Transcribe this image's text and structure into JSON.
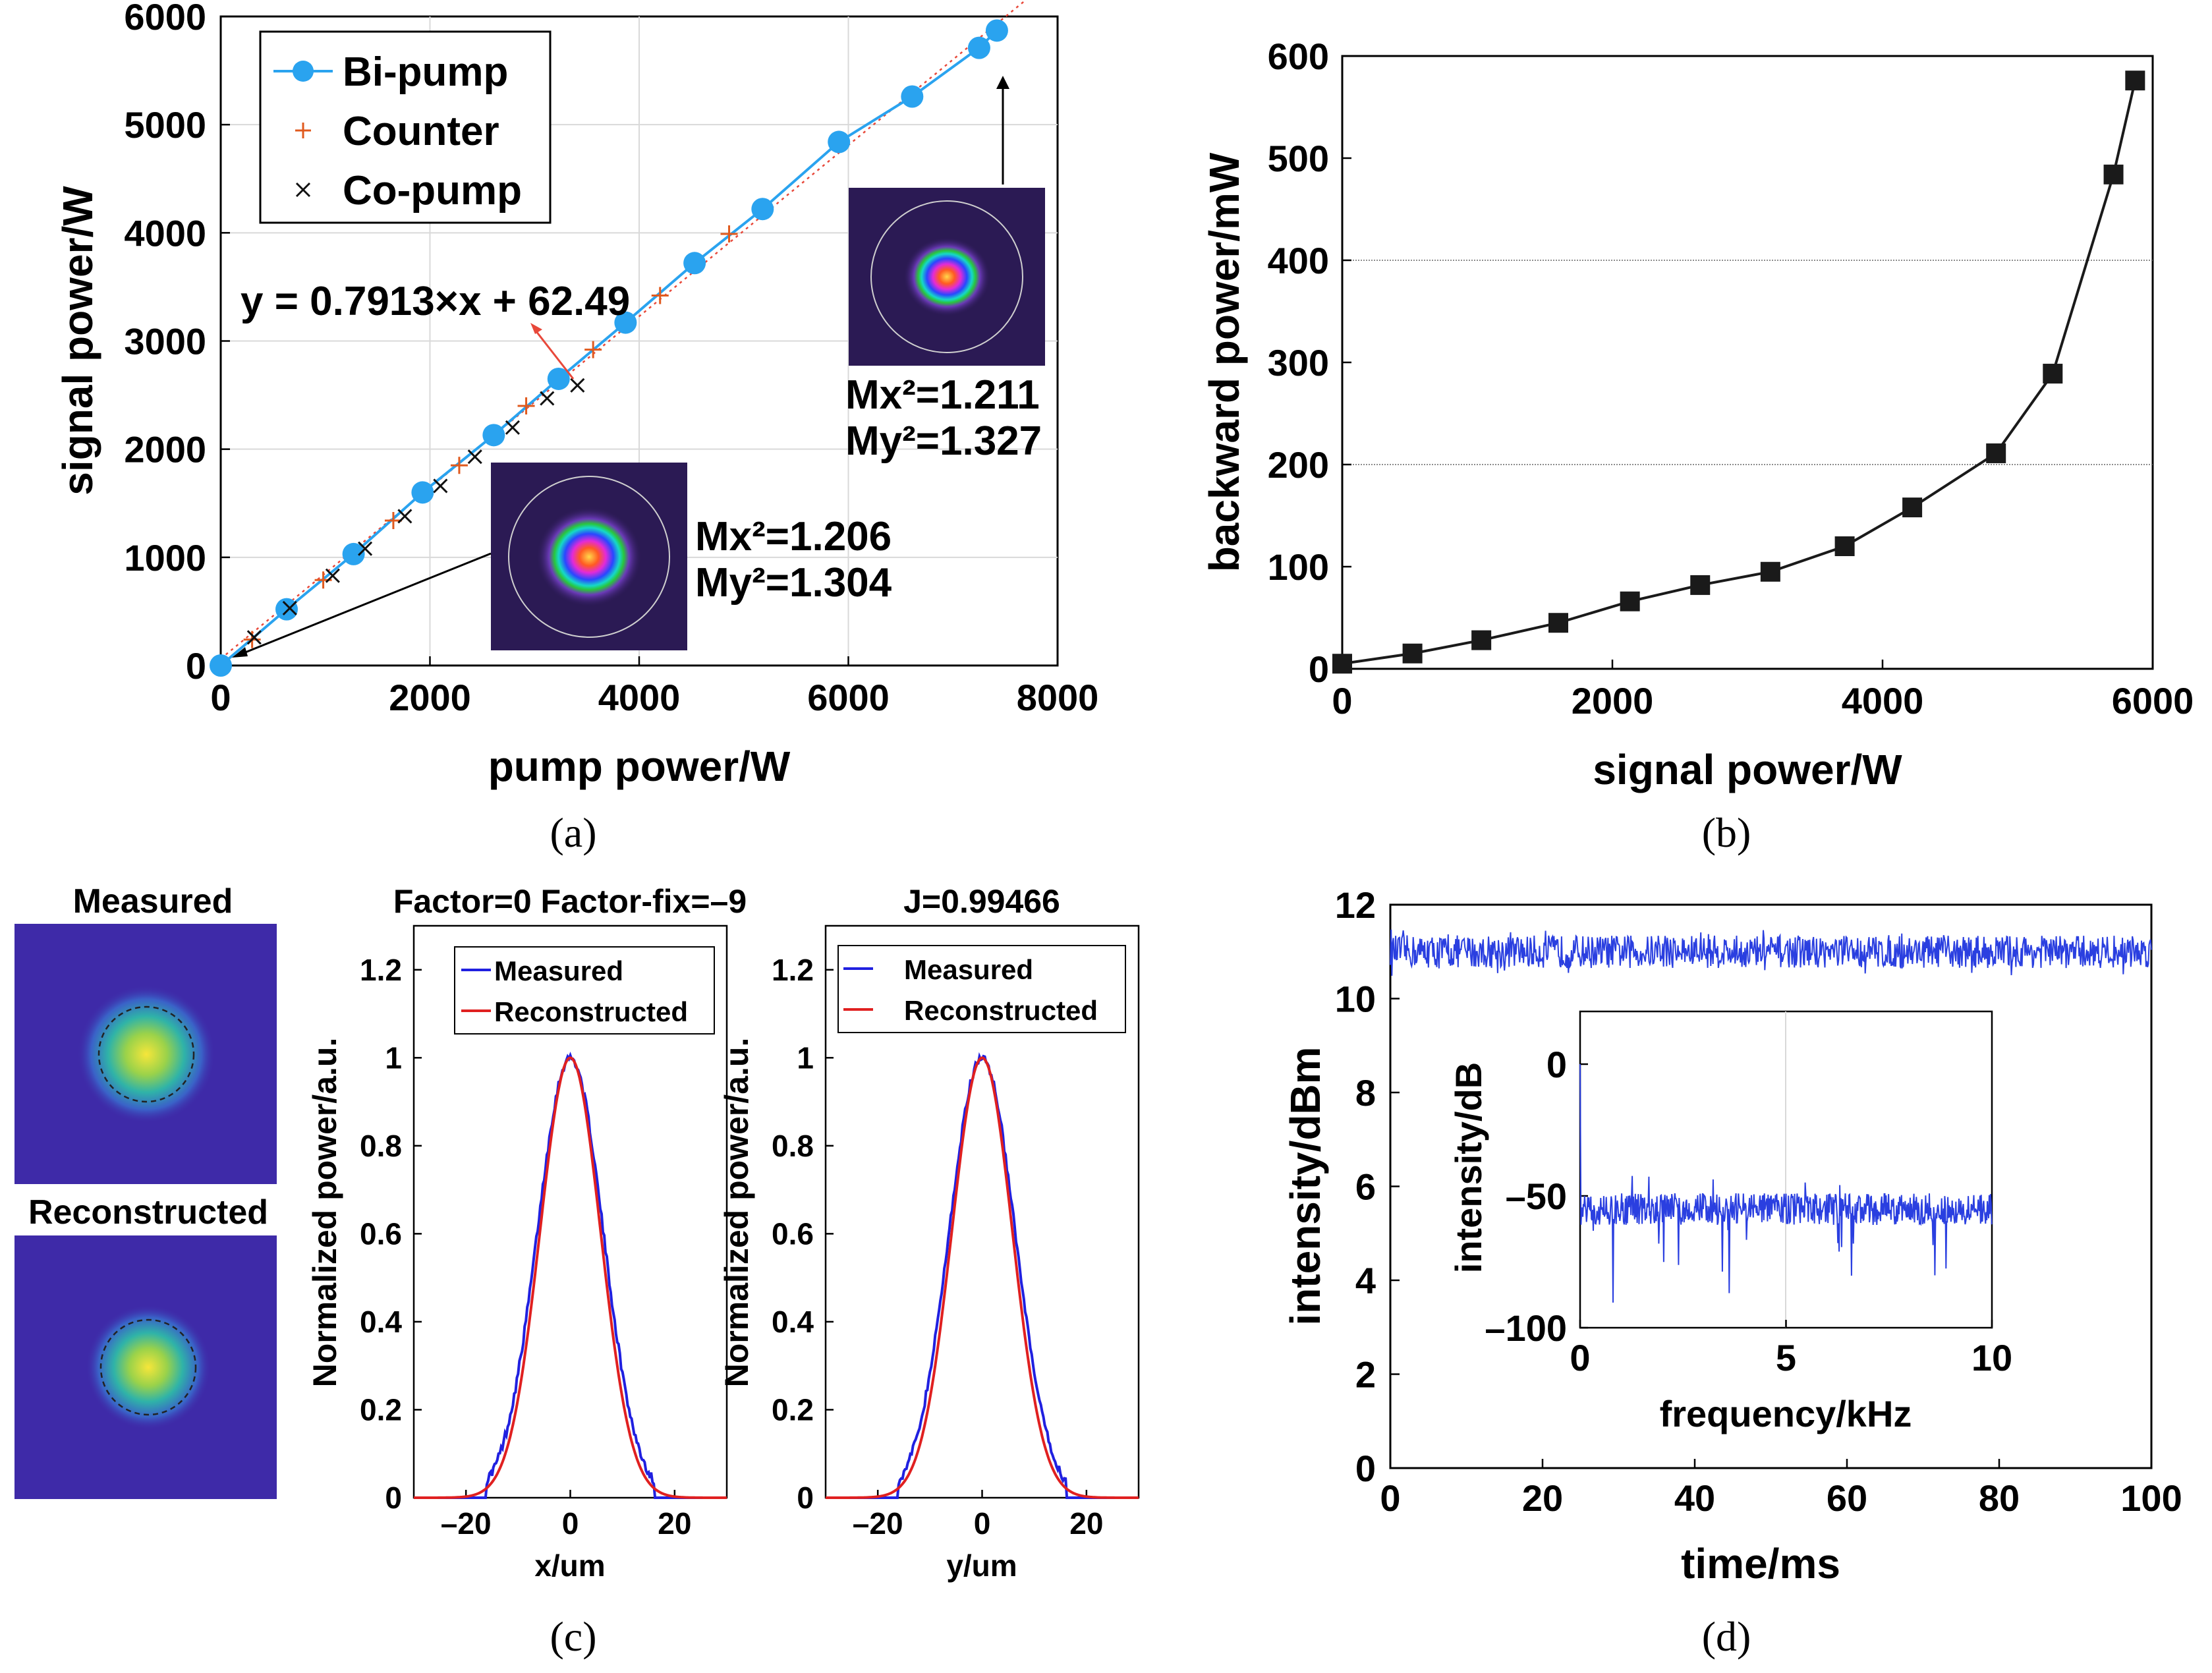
{
  "colors": {
    "bipump": "#2aa3ef",
    "counter": "#e05a1e",
    "copump": "#111111",
    "fitline": "#e8483a",
    "backward": "#1a1a1a",
    "measured_line": "#2020e0",
    "reconstructed_line": "#e02020",
    "noise": "#2a3fe0",
    "beam_bg": "#2b1a54",
    "mode_bg": "#3e2aa8"
  },
  "chart_data": [
    {
      "id": "a",
      "type": "scatter",
      "caption": "(a)",
      "xlabel": "pump power/W",
      "ylabel": "signal power/W",
      "xlim": [
        0,
        8000
      ],
      "ylim": [
        0,
        6000
      ],
      "xticks": [
        "0",
        "2000",
        "4000",
        "6000",
        "8000"
      ],
      "yticks": [
        "0",
        "1000",
        "2000",
        "3000",
        "4000",
        "5000",
        "6000"
      ],
      "grid": true,
      "legend": [
        "Bi-pump",
        "Counter",
        "Co-pump"
      ],
      "fit_equation": "y = 0.7913×x + 62.49",
      "fit": {
        "slope": 0.7913,
        "intercept": 62.49
      },
      "series": [
        {
          "name": "Bi-pump",
          "style": "line-circle",
          "x": [
            0,
            630,
            1270,
            1930,
            2610,
            3230,
            3870,
            4530,
            5180,
            5910,
            6610,
            7250,
            7420
          ],
          "y": [
            0,
            520,
            1030,
            1600,
            2130,
            2650,
            3170,
            3720,
            4220,
            4840,
            5260,
            5710,
            5870
          ]
        },
        {
          "name": "Counter",
          "style": "plus",
          "x": [
            300,
            980,
            1650,
            2280,
            2920,
            3560,
            4200,
            4860
          ],
          "y": [
            240,
            790,
            1340,
            1850,
            2400,
            2920,
            3420,
            3990
          ]
        },
        {
          "name": "Co-pump",
          "style": "cross",
          "x": [
            320,
            660,
            1070,
            1380,
            1760,
            2100,
            2430,
            2790,
            3120,
            3410
          ],
          "y": [
            260,
            530,
            830,
            1080,
            1380,
            1660,
            1930,
            2200,
            2470,
            2590
          ]
        }
      ],
      "insets": [
        {
          "mx": "Mx²=1.206",
          "my": "My²=1.304"
        },
        {
          "mx": "Mx²=1.211",
          "my": "My²=1.327"
        }
      ]
    },
    {
      "id": "b",
      "type": "line",
      "caption": "(b)",
      "xlabel": "signal power/W",
      "ylabel": "backward power/mW",
      "xlim": [
        0,
        6000
      ],
      "ylim": [
        0,
        600
      ],
      "xticks": [
        "0",
        "2000",
        "4000",
        "6000"
      ],
      "yticks": [
        "0",
        "100",
        "200",
        "300",
        "400",
        "500",
        "600"
      ],
      "series": [
        {
          "name": "backward power",
          "x": [
            0,
            520,
            1030,
            1600,
            2130,
            2650,
            3170,
            3720,
            4220,
            4840,
            5260,
            5710,
            5870
          ],
          "y": [
            5,
            15,
            28,
            45,
            66,
            82,
            95,
            120,
            158,
            211,
            289,
            484,
            576
          ]
        }
      ]
    },
    {
      "id": "c",
      "type": "line",
      "caption": "(c)",
      "images": [
        "Measured",
        "Reconstructed"
      ],
      "panels": [
        {
          "title": "Factor=0 Factor-fix=–9",
          "xlabel": "x/um",
          "ylabel": "Normalized power/a.u.",
          "xlim": [
            -30,
            30
          ],
          "ylim": [
            0,
            1.3
          ],
          "xticks": [
            "–20",
            "0",
            "20"
          ],
          "yticks": [
            "0",
            "0.2",
            "0.4",
            "0.6",
            "0.8",
            "1",
            "1.2"
          ],
          "legend": [
            "Measured",
            "Reconstructed"
          ],
          "gaussian": {
            "amplitude": 1.0,
            "sigma_reconstructed": 5.8,
            "sigma_measured": 6.3
          }
        },
        {
          "title": "J=0.99466",
          "xlabel": "y/um",
          "ylabel": "Normalized power/a.u.",
          "xlim": [
            -30,
            30
          ],
          "ylim": [
            0,
            1.3
          ],
          "xticks": [
            "–20",
            "0",
            "20"
          ],
          "yticks": [
            "0",
            "0.2",
            "0.4",
            "0.6",
            "0.8",
            "1",
            "1.2"
          ],
          "legend": [
            "Measured",
            "Reconstructed"
          ],
          "gaussian": {
            "amplitude": 1.0,
            "sigma_reconstructed": 5.8,
            "sigma_measured": 6.3
          }
        }
      ]
    },
    {
      "id": "d",
      "type": "line",
      "caption": "(d)",
      "xlabel": "time/ms",
      "ylabel": "intensity/dBm",
      "xlim": [
        0,
        100
      ],
      "ylim": [
        0,
        12
      ],
      "xticks": [
        "0",
        "20",
        "40",
        "60",
        "80",
        "100"
      ],
      "yticks": [
        "0",
        "2",
        "4",
        "6",
        "8",
        "10",
        "12"
      ],
      "series": [
        {
          "name": "intensity",
          "mean": 11.0,
          "spread": 0.35
        }
      ],
      "inset": {
        "xlabel": "frequency/kHz",
        "ylabel": "intensity/dB",
        "xlim": [
          0,
          10
        ],
        "ylim": [
          -100,
          20
        ],
        "xticks": [
          "0",
          "5",
          "10"
        ],
        "yticks": [
          "0",
          "–50",
          "–100"
        ],
        "mean": -55,
        "spread": 6,
        "dc_peak": 0
      }
    }
  ]
}
